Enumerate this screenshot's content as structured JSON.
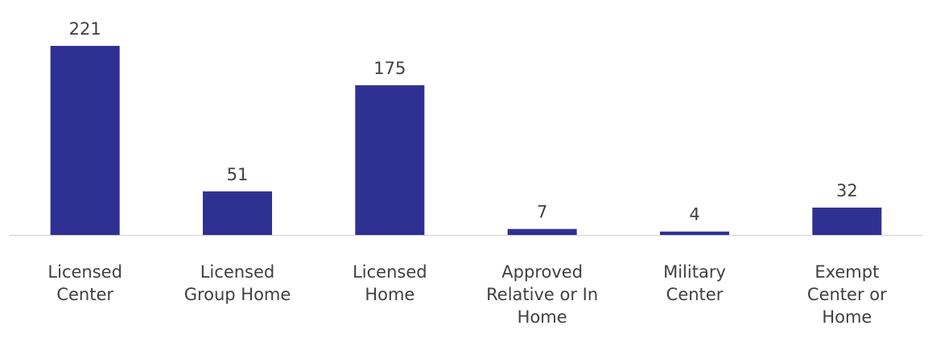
{
  "chart_data": {
    "type": "bar",
    "categories": [
      "Licensed Center",
      "Licensed Group Home",
      "Licensed Home",
      "Approved Relative or In Home",
      "Military Center",
      "Exempt Center or Home"
    ],
    "values": [
      221,
      51,
      175,
      7,
      4,
      32
    ],
    "color": "#2e3192"
  }
}
